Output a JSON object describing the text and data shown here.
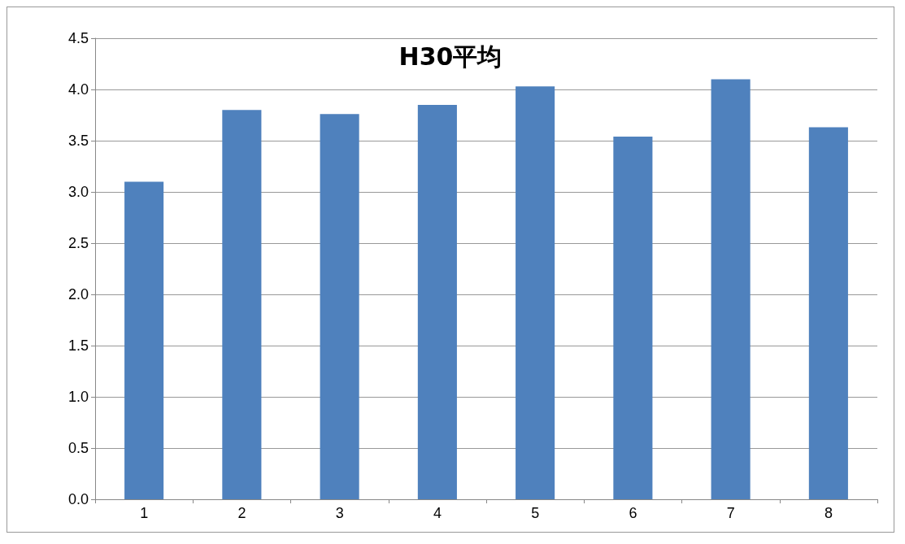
{
  "chart_data": {
    "type": "bar",
    "title": "H30平均",
    "categories": [
      "1",
      "2",
      "3",
      "4",
      "5",
      "6",
      "7",
      "8"
    ],
    "values": [
      3.1,
      3.8,
      3.76,
      3.85,
      4.03,
      3.54,
      4.1,
      3.63
    ],
    "color": "#4f81bd",
    "ylim": [
      0,
      4.5
    ],
    "yticks": [
      {
        "value": 0,
        "label": "0.0"
      },
      0.5,
      {
        "value": 1,
        "label": "1.0"
      },
      1.5,
      {
        "value": 2,
        "label": "2.0"
      },
      2.5,
      {
        "value": 3,
        "label": "3.0"
      },
      3.5,
      {
        "value": 4,
        "label": "4.0"
      },
      4.5
    ],
    "grid": "y"
  }
}
